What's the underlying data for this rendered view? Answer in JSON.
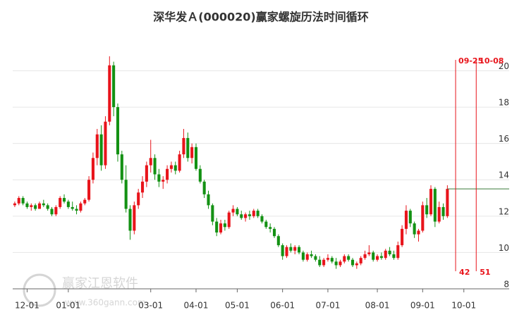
{
  "chart_data": {
    "type": "candlestick",
    "title": "深华发Ａ(000020)赢家螺旋历法时间循环",
    "up_color": "#e8141b",
    "down_color": "#139113",
    "candles": [
      [
        12.6,
        12.8,
        12.5,
        12.7
      ],
      [
        12.7,
        13.1,
        12.6,
        13.0
      ],
      [
        13.0,
        13.1,
        12.6,
        12.7
      ],
      [
        12.7,
        12.8,
        12.4,
        12.5
      ],
      [
        12.5,
        12.7,
        12.3,
        12.6
      ],
      [
        12.6,
        12.7,
        12.3,
        12.4
      ],
      [
        12.4,
        12.8,
        12.4,
        12.7
      ],
      [
        12.7,
        12.9,
        12.5,
        12.6
      ],
      [
        12.6,
        12.7,
        12.3,
        12.4
      ],
      [
        12.4,
        12.5,
        12.0,
        12.1
      ],
      [
        12.1,
        12.6,
        12.0,
        12.5
      ],
      [
        12.5,
        13.1,
        12.4,
        13.0
      ],
      [
        13.0,
        13.2,
        12.7,
        12.8
      ],
      [
        12.8,
        12.9,
        12.4,
        12.5
      ],
      [
        12.5,
        12.8,
        12.3,
        12.4
      ],
      [
        12.4,
        12.6,
        12.1,
        12.3
      ],
      [
        12.3,
        12.8,
        12.2,
        12.7
      ],
      [
        12.7,
        13.0,
        12.6,
        12.9
      ],
      [
        12.9,
        14.2,
        12.8,
        14.0
      ],
      [
        14.0,
        15.5,
        13.8,
        15.2
      ],
      [
        15.2,
        16.8,
        14.8,
        16.5
      ],
      [
        16.5,
        17.0,
        14.5,
        14.8
      ],
      [
        14.8,
        17.5,
        14.6,
        17.2
      ],
      [
        17.2,
        20.8,
        17.0,
        20.3
      ],
      [
        20.3,
        20.5,
        17.5,
        18.0
      ],
      [
        18.0,
        18.2,
        15.0,
        15.4
      ],
      [
        15.4,
        15.6,
        13.8,
        14.0
      ],
      [
        14.0,
        14.8,
        12.2,
        12.4
      ],
      [
        12.4,
        12.6,
        10.7,
        11.2
      ],
      [
        11.2,
        12.8,
        11.0,
        12.6
      ],
      [
        12.6,
        13.5,
        12.4,
        13.3
      ],
      [
        13.3,
        14.2,
        13.0,
        13.9
      ],
      [
        13.9,
        15.0,
        13.6,
        14.8
      ],
      [
        14.8,
        16.2,
        14.4,
        15.2
      ],
      [
        15.2,
        15.4,
        14.0,
        14.3
      ],
      [
        14.3,
        14.6,
        13.6,
        13.9
      ],
      [
        13.9,
        14.2,
        13.5,
        14.0
      ],
      [
        14.0,
        14.8,
        13.8,
        14.6
      ],
      [
        14.6,
        15.0,
        14.4,
        14.8
      ],
      [
        14.8,
        15.0,
        14.3,
        14.5
      ],
      [
        14.5,
        15.6,
        14.4,
        15.4
      ],
      [
        15.4,
        16.8,
        15.2,
        16.3
      ],
      [
        16.3,
        16.6,
        15.0,
        15.2
      ],
      [
        15.2,
        16.0,
        14.9,
        15.8
      ],
      [
        15.8,
        16.0,
        14.5,
        14.6
      ],
      [
        14.6,
        14.8,
        13.8,
        13.9
      ],
      [
        13.9,
        14.0,
        13.0,
        13.2
      ],
      [
        13.2,
        13.4,
        12.4,
        12.6
      ],
      [
        12.6,
        12.7,
        11.5,
        11.7
      ],
      [
        11.7,
        11.9,
        10.9,
        11.1
      ],
      [
        11.1,
        11.8,
        11.0,
        11.6
      ],
      [
        11.6,
        11.8,
        11.2,
        11.4
      ],
      [
        11.4,
        12.3,
        11.3,
        12.2
      ],
      [
        12.2,
        12.6,
        12.0,
        12.4
      ],
      [
        12.4,
        12.5,
        12.0,
        12.1
      ],
      [
        12.1,
        12.3,
        11.8,
        11.9
      ],
      [
        11.9,
        12.2,
        11.7,
        12.1
      ],
      [
        12.1,
        12.3,
        11.8,
        12.0
      ],
      [
        12.0,
        12.4,
        11.9,
        12.3
      ],
      [
        12.3,
        12.4,
        11.9,
        12.0
      ],
      [
        12.0,
        12.1,
        11.6,
        11.7
      ],
      [
        11.7,
        11.8,
        11.3,
        11.4
      ],
      [
        11.4,
        11.6,
        11.1,
        11.3
      ],
      [
        11.3,
        11.4,
        10.8,
        10.9
      ],
      [
        10.9,
        11.0,
        10.3,
        10.4
      ],
      [
        10.4,
        10.5,
        9.6,
        9.8
      ],
      [
        9.8,
        10.4,
        9.7,
        10.3
      ],
      [
        10.3,
        10.5,
        10.0,
        10.1
      ],
      [
        10.1,
        10.4,
        9.9,
        10.3
      ],
      [
        10.3,
        10.4,
        9.9,
        10.0
      ],
      [
        10.0,
        10.1,
        9.5,
        9.6
      ],
      [
        9.6,
        10.0,
        9.5,
        9.9
      ],
      [
        9.9,
        10.1,
        9.7,
        9.8
      ],
      [
        9.8,
        9.9,
        9.5,
        9.6
      ],
      [
        9.6,
        9.8,
        9.2,
        9.3
      ],
      [
        9.3,
        9.7,
        9.2,
        9.6
      ],
      [
        9.6,
        9.9,
        9.5,
        9.7
      ],
      [
        9.7,
        9.8,
        9.4,
        9.5
      ],
      [
        9.5,
        9.7,
        9.1,
        9.3
      ],
      [
        9.3,
        9.6,
        9.2,
        9.5
      ],
      [
        9.5,
        9.9,
        9.4,
        9.8
      ],
      [
        9.8,
        9.9,
        9.5,
        9.6
      ],
      [
        9.6,
        9.7,
        9.2,
        9.3
      ],
      [
        9.3,
        9.5,
        9.1,
        9.4
      ],
      [
        9.4,
        9.8,
        9.3,
        9.7
      ],
      [
        9.7,
        10.1,
        9.6,
        9.9
      ],
      [
        9.9,
        10.4,
        9.8,
        10.0
      ],
      [
        10.0,
        10.1,
        9.5,
        9.6
      ],
      [
        9.6,
        9.9,
        9.5,
        9.8
      ],
      [
        9.8,
        10.0,
        9.6,
        9.7
      ],
      [
        9.7,
        10.2,
        9.6,
        10.1
      ],
      [
        10.1,
        10.3,
        9.8,
        9.9
      ],
      [
        9.9,
        10.1,
        9.6,
        9.7
      ],
      [
        9.7,
        10.6,
        9.6,
        10.4
      ],
      [
        10.4,
        11.5,
        10.3,
        11.3
      ],
      [
        11.3,
        12.6,
        11.0,
        12.3
      ],
      [
        12.3,
        12.4,
        11.4,
        11.6
      ],
      [
        11.6,
        11.7,
        10.8,
        11.0
      ],
      [
        11.0,
        11.3,
        10.6,
        11.2
      ],
      [
        11.2,
        12.8,
        11.1,
        12.6
      ],
      [
        12.6,
        13.0,
        11.9,
        12.1
      ],
      [
        12.1,
        13.7,
        12.0,
        13.5
      ],
      [
        13.5,
        13.6,
        11.4,
        11.7
      ],
      [
        11.7,
        12.8,
        11.6,
        12.5
      ],
      [
        12.5,
        12.7,
        11.8,
        12.0
      ],
      [
        12.0,
        13.7,
        11.9,
        13.5
      ]
    ],
    "xlim": [
      -0.5,
      120
    ],
    "xticks": [
      {
        "value": 3,
        "label": "12-01"
      },
      {
        "value": 13,
        "label": "01-01"
      },
      {
        "value": 33,
        "label": "03-01"
      },
      {
        "value": 44,
        "label": "04-01"
      },
      {
        "value": 54,
        "label": "05-01"
      },
      {
        "value": 65,
        "label": "06-01"
      },
      {
        "value": 76,
        "label": "07-01"
      },
      {
        "value": 88,
        "label": "08-01"
      },
      {
        "value": 99,
        "label": "09-01"
      },
      {
        "value": 109,
        "label": "10-01"
      }
    ],
    "ylim": [
      8,
      20.6
    ],
    "yticks": [
      8,
      10,
      12,
      14,
      16,
      18,
      20
    ],
    "grid": true,
    "level_line": {
      "value": 13.5,
      "color": "#3a7a3a"
    },
    "cycle_lines": [
      {
        "value": 107,
        "label": "09-25",
        "count": 42
      },
      {
        "value": 112,
        "label": "10-08",
        "count": 51
      }
    ],
    "cycle_color": "#e8141b",
    "watermark": {
      "name": "赢家江恩软件",
      "url": "www.360gann.com"
    }
  }
}
